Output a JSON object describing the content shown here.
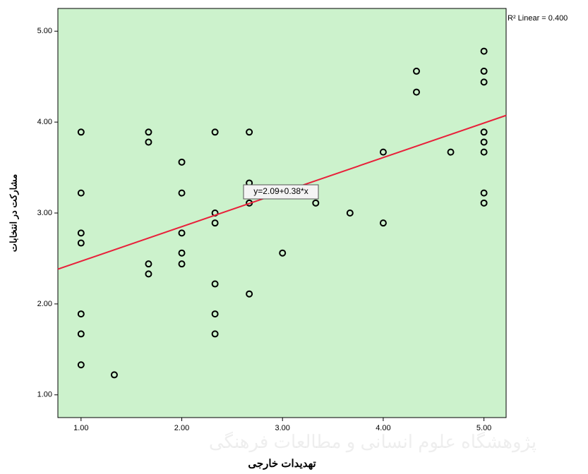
{
  "chart_data": {
    "type": "scatter",
    "x_label": "تهدیدات خارجی",
    "y_label": "مشارکت در انتخابات",
    "r2_label": "R² Linear = 0.400",
    "fit_label": "y=2.09+0.38*x",
    "fit": {
      "intercept": 2.09,
      "slope": 0.38
    },
    "watermark": "پژوهشگاه علوم انسانی و مطالعات فرهنگی",
    "series": [
      {
        "color": "#000000",
        "x": [
          1,
          1,
          1,
          1,
          1,
          1,
          1,
          1.33,
          1.67,
          1.67,
          1.67,
          1.67,
          2,
          2,
          2,
          2,
          2,
          2.33,
          2.33,
          2.33,
          2.33,
          2.33,
          2.33,
          2.67,
          2.67,
          2.67,
          2.67,
          3,
          3.33,
          3.67,
          4,
          4,
          4.33,
          4.33,
          4.67,
          5,
          5,
          5,
          5,
          5,
          5,
          5,
          5
        ],
        "values": [
          3.89,
          3.22,
          2.78,
          2.67,
          1.89,
          1.67,
          1.33,
          1.22,
          3.89,
          3.78,
          2.44,
          2.33,
          3.56,
          3.22,
          2.78,
          2.56,
          2.44,
          3.89,
          3.0,
          2.89,
          2.22,
          1.89,
          1.67,
          3.89,
          3.33,
          3.11,
          2.11,
          2.56,
          3.11,
          3.0,
          3.67,
          2.89,
          4.56,
          4.33,
          3.67,
          4.78,
          4.56,
          4.44,
          3.89,
          3.78,
          3.67,
          3.22,
          3.11
        ]
      }
    ],
    "fit_color": "#e8203a",
    "background": "#ccf2cc",
    "xlim": [
      0.77,
      5.22
    ],
    "ylim": [
      0.75,
      5.25
    ],
    "xticks": [
      {
        "value": 1,
        "label": "1.00"
      },
      {
        "value": 2,
        "label": "2.00"
      },
      {
        "value": 3,
        "label": "3.00"
      },
      {
        "value": 4,
        "label": "4.00"
      },
      {
        "value": 5,
        "label": "5.00"
      }
    ],
    "yticks": [
      {
        "value": 1,
        "label": "1.00"
      },
      {
        "value": 2,
        "label": "2.00"
      },
      {
        "value": 3,
        "label": "3.00"
      },
      {
        "value": 4,
        "label": "4.00"
      },
      {
        "value": 5,
        "label": "5.00"
      }
    ]
  }
}
